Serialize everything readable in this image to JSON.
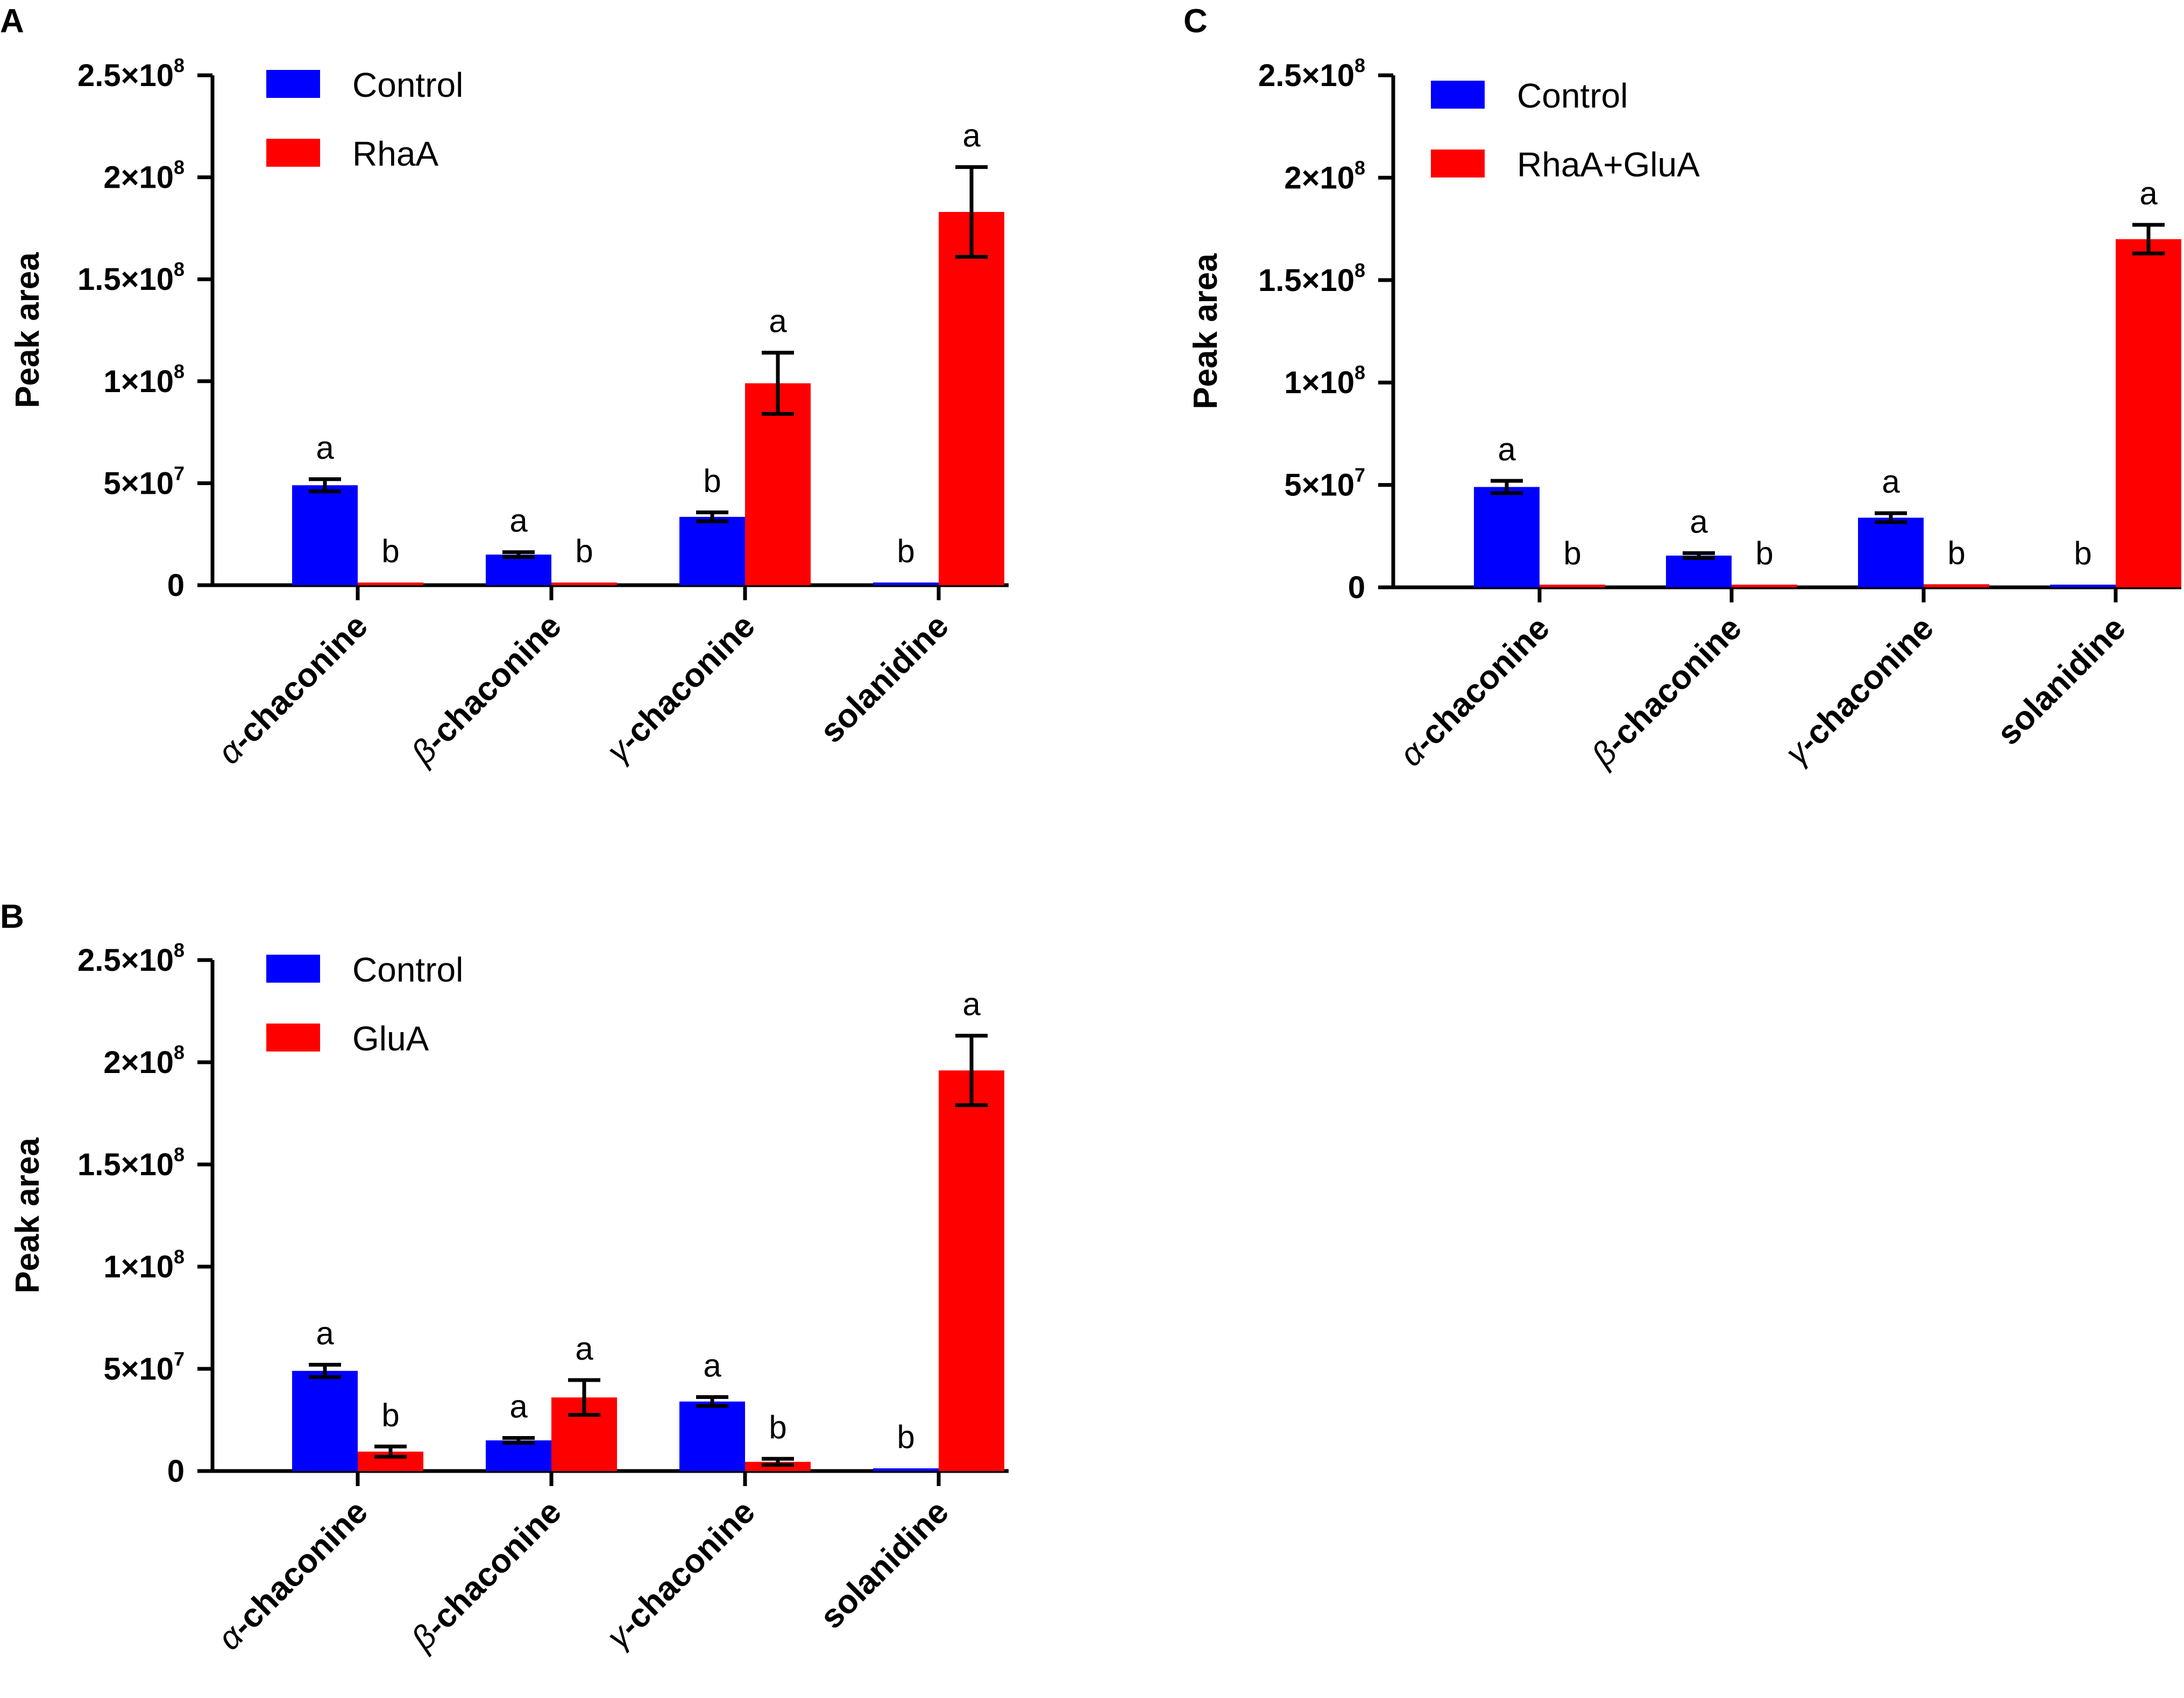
{
  "chart_data": [
    {
      "type": "bar",
      "panel": "A",
      "ylabel": "Peak area",
      "ylim": [
        0,
        250000000
      ],
      "y_ticks": [
        {
          "value": 0,
          "base": "0",
          "exp": ""
        },
        {
          "value": 50000000,
          "base": "5×10",
          "exp": "7"
        },
        {
          "value": 100000000,
          "base": "1×10",
          "exp": "8"
        },
        {
          "value": 150000000,
          "base": "1.5×10",
          "exp": "8"
        },
        {
          "value": 200000000,
          "base": "2×10",
          "exp": "8"
        },
        {
          "value": 250000000,
          "base": "2.5×10",
          "exp": "8"
        }
      ],
      "categories": [
        {
          "greek": "α",
          "rest": "-chaconine"
        },
        {
          "greek": "β",
          "rest": "-chaconine"
        },
        {
          "greek": "γ",
          "rest": "-chaconine"
        },
        {
          "greek": "",
          "rest": "solanidine"
        }
      ],
      "series": [
        {
          "name": "Control",
          "color": "#0000ff",
          "values": [
            49000000,
            15000000,
            33500000,
            400000
          ],
          "errors": [
            3000000,
            1200000,
            2200000,
            0
          ],
          "letters": [
            "a",
            "a",
            "b",
            "b"
          ]
        },
        {
          "name": "RhaA",
          "color": "#ff0000",
          "values": [
            0,
            0,
            99000000,
            183000000
          ],
          "errors": [
            0,
            0,
            15000000,
            22000000
          ],
          "letters": [
            "b",
            "b",
            "a",
            "a"
          ]
        }
      ]
    },
    {
      "type": "bar",
      "panel": "B",
      "ylabel": "Peak area",
      "ylim": [
        0,
        250000000
      ],
      "y_ticks": [
        {
          "value": 0,
          "base": "0",
          "exp": ""
        },
        {
          "value": 50000000,
          "base": "5×10",
          "exp": "7"
        },
        {
          "value": 100000000,
          "base": "1×10",
          "exp": "8"
        },
        {
          "value": 150000000,
          "base": "1.5×10",
          "exp": "8"
        },
        {
          "value": 200000000,
          "base": "2×10",
          "exp": "8"
        },
        {
          "value": 250000000,
          "base": "2.5×10",
          "exp": "8"
        }
      ],
      "categories": [
        {
          "greek": "α",
          "rest": "-chaconine"
        },
        {
          "greek": "β",
          "rest": "-chaconine"
        },
        {
          "greek": "γ",
          "rest": "-chaconine"
        },
        {
          "greek": "",
          "rest": "solanidine"
        }
      ],
      "series": [
        {
          "name": "Control",
          "color": "#0000ff",
          "values": [
            49000000,
            15000000,
            34000000,
            400000
          ],
          "errors": [
            3000000,
            1200000,
            2200000,
            0
          ],
          "letters": [
            "a",
            "a",
            "a",
            "b"
          ]
        },
        {
          "name": "GluA",
          "color": "#ff0000",
          "values": [
            9500000,
            36000000,
            4500000,
            196000000
          ],
          "errors": [
            2500000,
            8500000,
            1500000,
            17000000
          ],
          "letters": [
            "b",
            "a",
            "b",
            "a"
          ]
        }
      ]
    },
    {
      "type": "bar",
      "panel": "C",
      "ylabel": "Peak area",
      "ylim": [
        0,
        250000000
      ],
      "y_ticks": [
        {
          "value": 0,
          "base": "0",
          "exp": ""
        },
        {
          "value": 50000000,
          "base": "5×10",
          "exp": "7"
        },
        {
          "value": 100000000,
          "base": "1×10",
          "exp": "8"
        },
        {
          "value": 150000000,
          "base": "1.5×10",
          "exp": "8"
        },
        {
          "value": 200000000,
          "base": "2×10",
          "exp": "8"
        },
        {
          "value": 250000000,
          "base": "2.5×10",
          "exp": "8"
        }
      ],
      "categories": [
        {
          "greek": "α",
          "rest": "-chaconine"
        },
        {
          "greek": "β",
          "rest": "-chaconine"
        },
        {
          "greek": "γ",
          "rest": "-chaconine"
        },
        {
          "greek": "",
          "rest": "solanidine"
        }
      ],
      "series": [
        {
          "name": "Control",
          "color": "#0000ff",
          "values": [
            49000000,
            15500000,
            34000000,
            400000
          ],
          "errors": [
            3000000,
            1200000,
            2200000,
            0
          ],
          "letters": [
            "a",
            "a",
            "a",
            "b"
          ]
        },
        {
          "name": "RhaA+GluA",
          "color": "#ff0000",
          "values": [
            400000,
            1200000,
            1500000,
            170000000
          ],
          "errors": [
            0,
            0,
            0,
            7000000
          ],
          "letters": [
            "b",
            "b",
            "b",
            "a"
          ]
        }
      ]
    }
  ]
}
